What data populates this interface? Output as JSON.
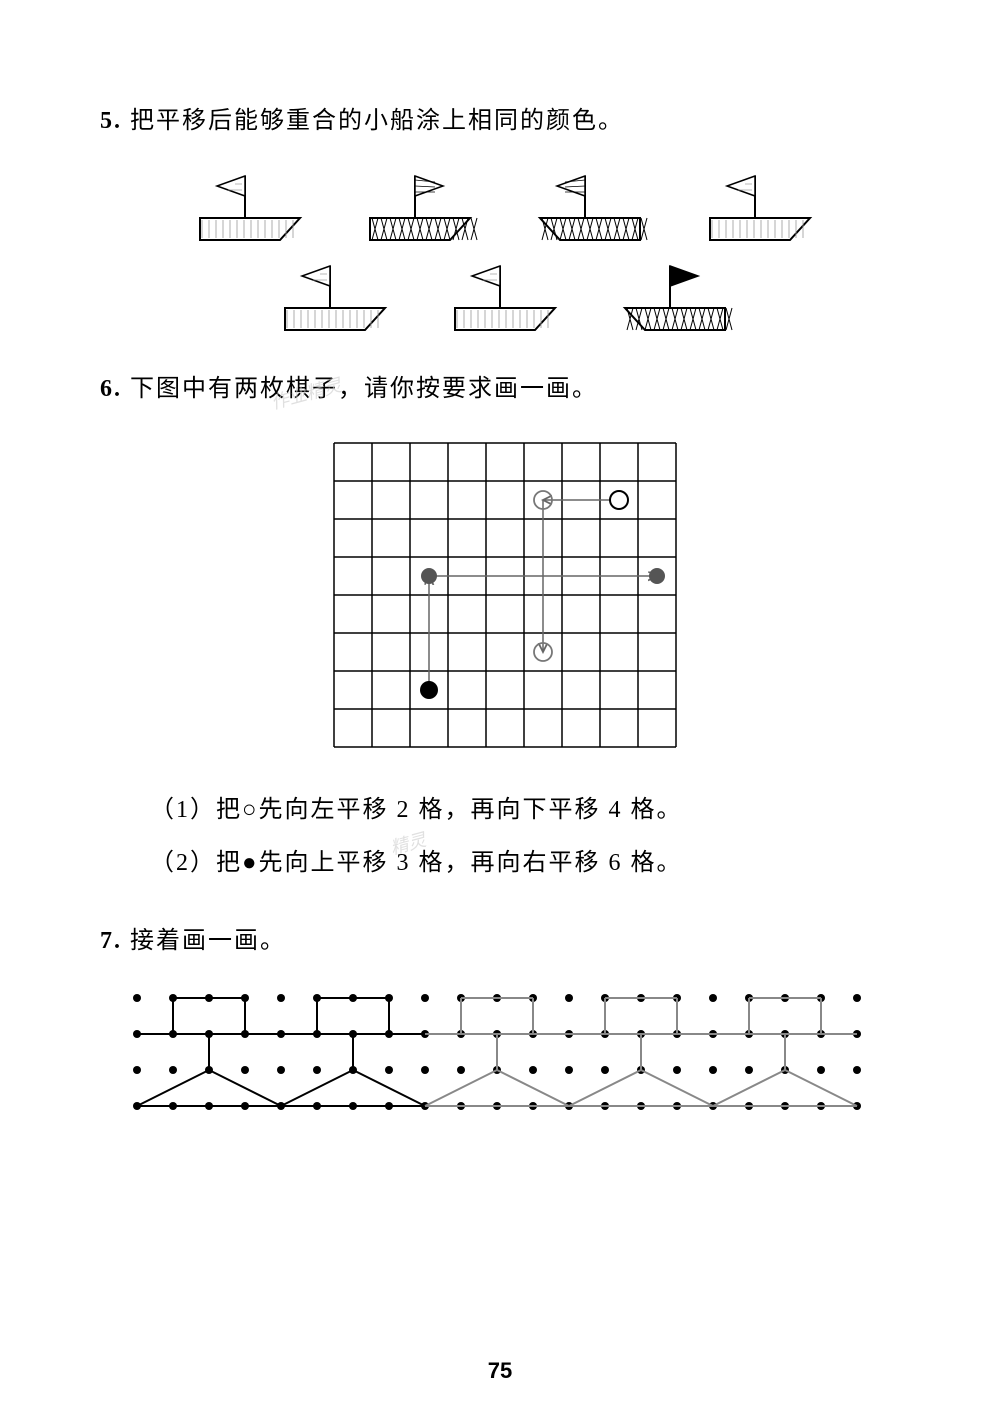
{
  "problems": {
    "p5": {
      "number": "5.",
      "text": "把平移后能够重合的小船涂上相同的颜色。",
      "boats": {
        "row1": [
          {
            "hull_fill": "light",
            "flag_dir": "left",
            "flag_fill": "none"
          },
          {
            "hull_fill": "dark",
            "flag_dir": "right",
            "flag_fill": "grid"
          },
          {
            "hull_fill": "dark",
            "flag_dir": "left",
            "flag_fill": "grid",
            "hull_reverse": true
          },
          {
            "hull_fill": "light",
            "flag_dir": "left",
            "flag_fill": "none"
          }
        ],
        "row2": [
          {
            "hull_fill": "light",
            "flag_dir": "left",
            "flag_fill": "none"
          },
          {
            "hull_fill": "light",
            "flag_dir": "left",
            "flag_fill": "none"
          },
          {
            "hull_fill": "dark",
            "flag_dir": "right",
            "flag_fill": "solid",
            "hull_reverse": true
          }
        ]
      },
      "boat_style": {
        "width": 120,
        "height": 80,
        "hull_light": "#ffffff",
        "hull_dark_hatch": "#000000",
        "stroke": "#000000",
        "stroke_width": 2
      }
    },
    "p6": {
      "number": "6.",
      "text": "下图中有两枚棋子，请你按要求画一画。",
      "grid": {
        "cols": 9,
        "rows": 8,
        "cell": 38,
        "stroke": "#000000",
        "stroke_width": 1.5,
        "pieces": [
          {
            "type": "open_circle",
            "col": 7,
            "row": 1,
            "label": "O-start"
          },
          {
            "type": "open_circle_drawn",
            "col": 5,
            "row": 1,
            "label": "O-left2"
          },
          {
            "type": "open_circle_drawn",
            "col": 5,
            "row": 5,
            "label": "O-down4"
          },
          {
            "type": "solid_circle",
            "col": 2,
            "row": 6,
            "label": "filled-start"
          },
          {
            "type": "solid_circle_drawn",
            "col": 2,
            "row": 3,
            "label": "filled-up3"
          },
          {
            "type": "solid_circle_drawn",
            "col": 8,
            "row": 3,
            "label": "filled-right6"
          }
        ],
        "arrows": [
          {
            "from": [
              7,
              1
            ],
            "to": [
              5,
              1
            ]
          },
          {
            "from": [
              5,
              1
            ],
            "to": [
              5,
              5
            ]
          },
          {
            "from": [
              2,
              6
            ],
            "to": [
              2,
              3
            ]
          },
          {
            "from": [
              2,
              3
            ],
            "to": [
              8,
              3
            ]
          }
        ]
      },
      "sub1_label": "（1）",
      "sub1_text": "把○先向左平移 2 格，再向下平移 4 格。",
      "sub2_label": "（2）",
      "sub2_text": "把●先向上平移 3 格，再向右平移 6 格。"
    },
    "p7": {
      "number": "7.",
      "text": "接着画一画。",
      "pattern": {
        "unit_count": 5,
        "dot_cols": 5,
        "dot_rows": 4,
        "dot_gap": 36,
        "dot_color": "#000000",
        "dot_r": 4,
        "line_color": "#000000",
        "line_width": 2,
        "drawn_color": "#888888"
      }
    }
  },
  "page_number": "75",
  "watermarks": [
    "作业精灵",
    "精灵"
  ],
  "colors": {
    "bg": "#ffffff",
    "text": "#000000"
  }
}
